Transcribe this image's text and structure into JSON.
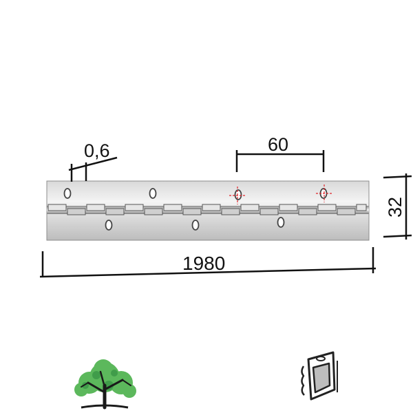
{
  "drawing": {
    "dimensions": {
      "thickness": "0,6",
      "hole_spacing": "60",
      "length": "1980",
      "width": "32"
    },
    "colors": {
      "line": "#111111",
      "plate_light": "#e8e8e8",
      "plate_shadow": "#9a9a9a",
      "crosshair": "#e0242a",
      "tree_leaf": "#4caf50",
      "tree_trunk": "#1a1a1a",
      "package": "#222222"
    }
  },
  "icons": {
    "material": "tree-icon",
    "packaging": "blister-package-icon"
  }
}
